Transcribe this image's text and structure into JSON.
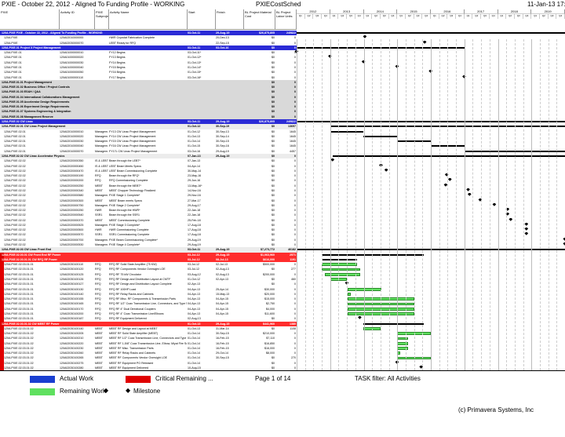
{
  "header": {
    "title": "PXIE - October 22, 2012 - Aligned To Funding Profile - WORKING",
    "layout": "PXIECostSched",
    "date": "11-Jan-13 17:22"
  },
  "columns": {
    "id": "PXIE",
    "activity_id": "Activity ID",
    "subproject": "PXIE Subproject",
    "name": "Activity Name",
    "start": "Start",
    "finish": "Finish",
    "bl_cost": "BL Project Material Cost",
    "bl_labor": "BL Project Labor Units"
  },
  "years": [
    "2012",
    "2013",
    "2014",
    "2015",
    "2016",
    "2017",
    "2018",
    "2019"
  ],
  "quarters": [
    "Q1",
    "Q2",
    "Q3",
    "Q4"
  ],
  "rows": [
    {
      "k": "t",
      "id": "120A.PXIE",
      "name": "PXIE - October 22, 2012 - Aligned To Funding Profile - WORKING",
      "start": "03-Oct-11",
      "finish": "29-Aug-19",
      "cost": "$26,875,805",
      "labor": "249822",
      "bar": [
        0,
        1
      ]
    },
    {
      "k": "d",
      "id": "120A.PXIE",
      "aid": "120A02010000000",
      "name": "HWR Cryostat Fabrication Complete",
      "finish": "20-Dec-13",
      "cost": "$0",
      "labor": "0",
      "ms": 0.2548
    },
    {
      "k": "d",
      "id": "120A.PXIE",
      "aid": "120A02030000070",
      "name": "LEBT Ready for RFQ",
      "finish": "22-Sep-15",
      "cost": "$0",
      "labor": "0",
      "ms": 0.4776
    },
    {
      "k": "h",
      "id": "120A.PXIE.01",
      "name": "Project X Project Management",
      "start": "03-Oct-11",
      "finish": "03-Oct-16",
      "cost": "$0",
      "labor": "0",
      "bar": [
        0,
        0.6246
      ]
    },
    {
      "k": "d",
      "id": "120A.PXIE.01",
      "aid": "120A01000000010",
      "name": "FY12 Begins",
      "start": "03-Oct-11*",
      "cost": "$0",
      "labor": "0",
      "ms": 0.0
    },
    {
      "k": "d",
      "id": "120A.PXIE.01",
      "aid": "120A01000000020",
      "name": "FY13 Begins",
      "start": "01-Oct-12*",
      "cost": "$0",
      "labor": "0",
      "ms": 0.1246
    },
    {
      "k": "d",
      "id": "120A.PXIE.01",
      "aid": "120A01000000030",
      "name": "FY14 Begins",
      "start": "01-Oct-13*",
      "cost": "$0",
      "labor": "0",
      "ms": 0.2496
    },
    {
      "k": "d",
      "id": "120A.PXIE.01",
      "aid": "120A01000000040",
      "name": "FY15 Begins",
      "start": "01-Oct-14*",
      "cost": "$0",
      "labor": "0",
      "ms": 0.3746
    },
    {
      "k": "d",
      "id": "120A.PXIE.01",
      "aid": "120A01000000050",
      "name": "FY16 Begins",
      "start": "01-Oct-15*",
      "cost": "$0",
      "labor": "0",
      "ms": 0.4996
    },
    {
      "k": "d",
      "id": "120A.PXIE.01",
      "aid": "120A01000000110",
      "name": "FY17 Begins",
      "start": "03-Oct-16*",
      "cost": "$0",
      "labor": "0",
      "ms": 0.6246
    },
    {
      "k": "s",
      "id": "120A.PXIE.01.01",
      "name": "Project Management",
      "cost": "$0",
      "labor": "0"
    },
    {
      "k": "s",
      "id": "120A.PXIE.01.02",
      "name": "Business Office / Project Controls",
      "cost": "$0",
      "labor": "0"
    },
    {
      "k": "s",
      "id": "120A.PXIE.01.03",
      "name": "ES&H / Q&A",
      "cost": "$0",
      "labor": "0"
    },
    {
      "k": "s",
      "id": "120A.PXIE.01.04",
      "name": "International Collaborations Management",
      "cost": "$0",
      "labor": "0"
    },
    {
      "k": "s",
      "id": "120A.PXIE.01.05",
      "name": "Accelerator Design Requirements",
      "cost": "$0",
      "labor": "0"
    },
    {
      "k": "s",
      "id": "120A.PXIE.01.06",
      "name": "Experiment Design Requirements",
      "cost": "$0",
      "labor": "0"
    },
    {
      "k": "s",
      "id": "120A.PXIE.01.07",
      "name": "Systems Engineering & Integration",
      "cost": "$0",
      "labor": "0"
    },
    {
      "k": "s",
      "id": "120A.PXIE.01.08",
      "name": "Management Reserve",
      "cost": "$0",
      "labor": "0"
    },
    {
      "k": "h",
      "id": "120A.PXIE.02",
      "name": "CW Linac",
      "start": "03-Oct-11",
      "finish": "29-Aug-19",
      "cost": "$26,875,805",
      "labor": "249822",
      "bar": [
        0,
        1
      ]
    },
    {
      "k": "s2",
      "id": "120A.PXIE.02.01",
      "name": "CW Linac Project Management",
      "start": "01-Oct-12",
      "finish": "30-Sep-19",
      "cost": "$0",
      "labor": "13697",
      "bar": [
        0.1246,
        1
      ]
    },
    {
      "k": "d",
      "id": "120A.PXIE.02.01",
      "aid": "120A02010000010",
      "sub": "Managem...",
      "name": "FY13 CW Linac Project Management",
      "start": "01-Oct-12",
      "finish": "30-Sep-13",
      "cost": "$0",
      "labor": "1645",
      "bar": [
        0.1246,
        0.2496
      ]
    },
    {
      "k": "d",
      "id": "120A.PXIE.02.01",
      "aid": "120A02010000020",
      "sub": "Managem...",
      "name": "FY14 CW Linac Project Management",
      "start": "01-Oct-13",
      "finish": "30-Sep-14",
      "cost": "$0",
      "labor": "1645",
      "bar": [
        0.2496,
        0.3746
      ]
    },
    {
      "k": "d",
      "id": "120A.PXIE.02.01",
      "aid": "120A02010000030",
      "sub": "Managem...",
      "name": "FY15 CW Linac Project Management",
      "start": "01-Oct-14",
      "finish": "30-Sep-15",
      "cost": "$0",
      "labor": "1645",
      "bar": [
        0.3746,
        0.4996
      ]
    },
    {
      "k": "d",
      "id": "120A.PXIE.02.01",
      "aid": "120A02010000040",
      "sub": "Managem...",
      "name": "FY16 CW Linac Project Management",
      "start": "01-Oct-15",
      "finish": "30-Sep-16",
      "cost": "$0",
      "labor": "1645",
      "bar": [
        0.4996,
        0.6246
      ]
    },
    {
      "k": "d",
      "id": "120A.PXIE.02.01",
      "aid": "120A02010000070",
      "sub": "Managem...",
      "name": "FY17L CW Linac Project Management",
      "start": "03-Oct-16",
      "finish": "29-Aug-19",
      "cost": "$0",
      "labor": "4457",
      "bar": [
        0.6246,
        1
      ]
    },
    {
      "k": "s2",
      "id": "120A.PXIE.02.02",
      "name": "CW Linac Accelerator Physics",
      "start": "07-Jan-13",
      "finish": "29-Aug-19",
      "cost": "$0",
      "labor": "0",
      "bar": [
        0.1346,
        1
      ]
    },
    {
      "k": "d",
      "id": "120A.PXIE.02.02",
      "aid": "120A02020000350",
      "sub": "IS & LEBT",
      "name": "Beam through the LEBT*",
      "start": "07-Jan-13",
      "cost": "$0",
      "labor": "0",
      "ms": 0.1346
    },
    {
      "k": "d",
      "id": "120A.PXIE.02.02",
      "aid": "120A02020000450",
      "sub": "IS & LEBT",
      "name": "LEBT Beam Meets Specs",
      "start": "04-Apr-14",
      "cost": "$0",
      "labor": "0",
      "ms": 0.3146
    },
    {
      "k": "d",
      "id": "120A.PXIE.02.02",
      "aid": "120A02020000470",
      "sub": "IS & LEBT",
      "name": "LEBT Beam Commissioning Complete",
      "start": "30-May-14",
      "cost": "$0",
      "labor": "0",
      "ms": 0.3346
    },
    {
      "k": "d",
      "id": "120A.PXIE.02.02",
      "aid": "120A02020000190",
      "sub": "RFQ",
      "name": "Beam through the RFQ*",
      "start": "23-May-16",
      "cost": "$0",
      "labor": "0",
      "ms": 0.5596
    },
    {
      "k": "d",
      "id": "120A.PXIE.02.02",
      "aid": "120A02020000200",
      "sub": "RFQ",
      "name": "RFQ Commissioning Complete",
      "start": "29-Jun-16",
      "cost": "$0",
      "labor": "0",
      "ms": 0.5716
    },
    {
      "k": "d",
      "id": "120A.PXIE.02.02",
      "aid": "120A02020000250",
      "sub": "MEBT",
      "name": "Beam through the MEBT*",
      "start": "13-May-16*",
      "cost": "$0",
      "labor": "0",
      "ms": 0.5561
    },
    {
      "k": "d",
      "id": "120A.PXIE.02.02",
      "aid": "120A02020000340",
      "sub": "MEBT",
      "name": "MEBT Chopper Technology Finalized",
      "start": "14-Nov-16",
      "cost": "$0",
      "labor": "0",
      "ms": 0.6396
    },
    {
      "k": "d",
      "id": "120A.PXIE.02.02",
      "aid": "120A02020000580",
      "sub": "Managem...",
      "name": "PXIE Stage 1 Complete*",
      "start": "29-Nov-16",
      "cost": "$0",
      "labor": "0",
      "ms": 0.6446
    },
    {
      "k": "d",
      "id": "120A.PXIE.02.02",
      "aid": "120A02020000300",
      "sub": "MEBT",
      "name": "MEBT Beam meets Specs",
      "start": "27-Mar-17",
      "cost": "$0",
      "labor": "0",
      "ms": 0.6846
    },
    {
      "k": "d",
      "id": "120A.PXIE.02.02",
      "aid": "120A02020000750",
      "sub": "Managem...",
      "name": "PXIE Stage 2 Complete*",
      "start": "29-Aug-17",
      "cost": "$0",
      "labor": "0",
      "ms": 0.7371
    },
    {
      "k": "d",
      "id": "120A.PXIE.02.02",
      "aid": "120A02020000250",
      "sub": "HWR",
      "name": "Beam through the HWR*",
      "start": "22-Jan-18",
      "cost": "$0",
      "labor": "0",
      "ms": 0.7866
    },
    {
      "k": "d",
      "id": "120A.PXIE.02.02",
      "aid": "120A02020000540",
      "sub": "SSR1",
      "name": "Beam through the SSR1",
      "start": "22-Jan-18",
      "cost": "$0",
      "labor": "0",
      "ms": 0.7866
    },
    {
      "k": "d",
      "id": "120A.PXIE.02.02",
      "aid": "120A02020000370",
      "sub": "MEBT",
      "name": "MEBT Commissioning Complete",
      "start": "25-Feb-18",
      "cost": "$0",
      "labor": "0",
      "ms": 0.7981
    },
    {
      "k": "d",
      "id": "120A.PXIE.02.02",
      "aid": "120A02020000525",
      "sub": "Managem...",
      "name": "PXIE Stage 3 Complete*",
      "start": "17-Aug-18",
      "cost": "$0",
      "labor": "0",
      "ms": 0.8566
    },
    {
      "k": "d",
      "id": "120A.PXIE.02.02",
      "aid": "120A02020000500",
      "sub": "HWR",
      "name": "HWR Commissioning Complete",
      "start": "17-Aug-18",
      "cost": "$0",
      "labor": "0",
      "ms": 0.8566
    },
    {
      "k": "d",
      "id": "120A.PXIE.02.02",
      "aid": "120A02020000570",
      "sub": "SSR1",
      "name": "SSR1 Commissioning Complete",
      "start": "17-Aug-18",
      "cost": "$0",
      "labor": "0",
      "ms": 0.8566
    },
    {
      "k": "d",
      "id": "120A.PXIE.02.02",
      "aid": "120A02020000700",
      "sub": "Managem...",
      "name": "PXIE Beam Commissioning Complete*",
      "start": "29-Aug-19",
      "cost": "$0",
      "labor": "0",
      "ms": 1.0
    },
    {
      "k": "d",
      "id": "120A.PXIE.02.02",
      "aid": "120A02020000530",
      "sub": "Managem...",
      "name": "PXIE Stage 4 Complete*",
      "start": "29-Aug-19",
      "cost": "$0",
      "labor": "0",
      "ms": 1.0
    },
    {
      "k": "s2",
      "id": "120A.PXIE.02.03",
      "name": "CW Linac Front End",
      "start": "03-Oct-11",
      "finish": "29-Aug-19",
      "cost": "$7,273,772",
      "labor": "46182",
      "bar": [
        0,
        1
      ]
    },
    {
      "k": "r",
      "id": "120A.PXIE.02.03.01",
      "name": "CW Front End RF Power",
      "start": "03-Jul-12",
      "finish": "29-Aug-15",
      "cost": "$1,063,960",
      "labor": "2571",
      "bar": [
        0.0946,
        0.4736
      ]
    },
    {
      "k": "r",
      "id": "120A.PXIE.02.03.01.01",
      "name": "CW RFQ RF Power",
      "start": "03-Jul-12",
      "finish": "08-Jul-13",
      "cost": "$616,000",
      "labor": "1191",
      "bar": [
        0.0946,
        0.2266
      ]
    },
    {
      "k": "d",
      "id": "120A.PXIE.02.03.01.01",
      "aid": "120A02030100110",
      "sub": "RFQ",
      "name": "RFQ RF Solid State Amplifier (75 KW)",
      "start": "03-Jul-12",
      "finish": "02-Jul-13",
      "cost": "$500,000",
      "labor": "0",
      "gbar": [
        0.0946,
        0.2246
      ]
    },
    {
      "k": "d",
      "id": "120A.PXIE.02.03.01.01",
      "aid": "120A02030100120",
      "sub": "RFQ",
      "name": "RFQ RF Components Vendor Oversight LOE",
      "start": "03-Jul-12",
      "finish": "02-Aug-13",
      "cost": "$0",
      "labor": "277",
      "gbar": [
        0.0946,
        0.2356
      ]
    },
    {
      "k": "d",
      "id": "120A.PXIE.02.03.01.01",
      "aid": "120A02030100125",
      "sub": "RFQ",
      "name": "RFQ RF 75 kW Circulator",
      "start": "03-Aug-12",
      "finish": "02-Aug-13",
      "cost": "$200,000",
      "labor": "0",
      "gbar": [
        0.1056,
        0.2356
      ]
    },
    {
      "k": "d",
      "id": "120A.PXIE.02.03.01.01",
      "aid": "120A02030100126",
      "sub": "RFQ",
      "name": "RFQ RF Design and Distribution Layout at CMTF",
      "start": "01-Oct-12",
      "finish": "02-Apr-13",
      "cost": "$0",
      "labor": "460",
      "gbar": [
        0.1246,
        0.1876
      ]
    },
    {
      "k": "d",
      "id": "120A.PXIE.02.03.01.01",
      "aid": "120A02030100127",
      "sub": "RFQ",
      "name": "RFQ RF Design and Distribution Layout Complete",
      "start": "02-Apr-13",
      "cost": "$0",
      "labor": "0",
      "ms": 0.1876
    },
    {
      "k": "d",
      "id": "120A.PXIE.02.03.01.01",
      "aid": "120A02030100130",
      "sub": "RFQ",
      "name": "RFQ RF 100HP Load",
      "start": "04-Apr-13",
      "finish": "25-Apr-14",
      "cost": "$30,000",
      "labor": "0",
      "gbar": [
        0.1886,
        0.3146
      ]
    },
    {
      "k": "d",
      "id": "120A.PXIE.02.03.01.01",
      "aid": "120A02030100140",
      "sub": "RFQ",
      "name": "RFQ RF Relay Racks and Cabinets",
      "start": "04-Apr-13",
      "finish": "15-May-13",
      "cost": "$20,000",
      "labor": "0",
      "gbar": [
        0.1886,
        0.2026
      ]
    },
    {
      "k": "d",
      "id": "120A.PXIE.02.03.01.01",
      "aid": "120A02030100155",
      "sub": "RFQ",
      "name": "RFQ RF Misc. RF Components & Transmission Parts",
      "start": "04-Apr-13",
      "finish": "04-Apr-15",
      "cost": "$15,000",
      "labor": "0",
      "gbar": [
        0.1886,
        0.4376
      ]
    },
    {
      "k": "d",
      "id": "120A.PXIE.02.03.01.01",
      "aid": "120A02030100165",
      "sub": "RFQ",
      "name": "RFQ RF 1/2\" Coax Transmission Line, Connectors, and Type N Dual Directional ...",
      "start": "04-Apr-13",
      "finish": "04-Apr-15",
      "cost": "$2,750",
      "labor": "0",
      "gbar": [
        0.1886,
        0.4376
      ]
    },
    {
      "k": "d",
      "id": "120A.PXIE.02.03.01.01",
      "aid": "120A02030100170",
      "sub": "RFQ",
      "name": "RFQ RF 4\" Dual Directional Couplers",
      "start": "04-Apr-13",
      "finish": "04-Apr-15",
      "cost": "$4,000",
      "labor": "0",
      "gbar": [
        0.1886,
        0.4376
      ]
    },
    {
      "k": "d",
      "id": "120A.PXIE.02.03.01.01",
      "aid": "120A02030100200",
      "sub": "RFQ",
      "name": "RFQ RF 4\" Coax Transmission Line/Elbows",
      "start": "04-Apr-13",
      "finish": "04-Apr-15",
      "cost": "$11,600",
      "labor": "0",
      "gbar": [
        0.1886,
        0.4376
      ]
    },
    {
      "k": "d",
      "id": "120A.PXIE.02.03.01.01",
      "aid": "120A02030100187",
      "sub": "RFQ",
      "name": "RFQ RF Equipment Delivered",
      "start": "02-Aug-13",
      "cost": "$0",
      "labor": "0",
      "ms": 0.2356
    },
    {
      "k": "r",
      "id": "120A.PXIE.02.03.01.02",
      "name": "CW MEBT RF Power",
      "start": "01-Oct-13",
      "finish": "29-Aug-15",
      "cost": "$441,960",
      "labor": "1380",
      "bar": [
        0.2496,
        0.4736
      ]
    },
    {
      "k": "d",
      "id": "120A.PXIE.02.03.01.02",
      "aid": "120A02030100140",
      "sub": "MEBT",
      "name": "MEBT RF Design and Layout at MEBT",
      "start": "01-Oct-13",
      "finish": "31-Mar-14",
      "cost": "$0",
      "labor": "1108",
      "gbar": [
        0.2496,
        0.3116
      ]
    },
    {
      "k": "d",
      "id": "120A.PXIE.02.03.01.02",
      "aid": "120A02030100205",
      "sub": "MEBT",
      "name": "MEBT RF Solid State Amplifier (MEBT)",
      "start": "01-Oct-14",
      "finish": "30-Sep-15",
      "cost": "$210,000",
      "labor": "0",
      "gbar": [
        0.3746,
        0.4996
      ]
    },
    {
      "k": "d",
      "id": "120A.PXIE.02.03.01.02",
      "aid": "120A02030100210",
      "sub": "MEBT",
      "name": "MEBT RF 1/2\" Coax Transmission Line, Connectors and Type N Dual Directional ...",
      "start": "01-Oct-14",
      "finish": "16-Feb-15",
      "cost": "$7,110",
      "labor": "0",
      "gbar": [
        0.3746,
        0.4166
      ]
    },
    {
      "k": "d",
      "id": "120A.PXIE.02.03.01.02",
      "aid": "120A02030100220",
      "sub": "MEBT",
      "name": "MEBT RF 1-5/8\" Coax Transmission Line, Elbow, Miyat Fire Section and Dual Dire...",
      "start": "01-Oct-14",
      "finish": "16-Feb-15",
      "cost": "$16,850",
      "labor": "0",
      "gbar": [
        0.3746,
        0.4166
      ]
    },
    {
      "k": "d",
      "id": "120A.PXIE.02.03.01.02",
      "aid": "120A02030100230",
      "sub": "MEBT",
      "name": "MEBT RF Misc. Transmission Parts",
      "start": "01-Oct-14",
      "finish": "16-Feb-15",
      "cost": "$16,000",
      "labor": "0",
      "gbar": [
        0.3746,
        0.4166
      ]
    },
    {
      "k": "d",
      "id": "120A.PXIE.02.03.01.02",
      "aid": "120A02030100260",
      "sub": "MEBT",
      "name": "MEBT RF Relay Racks and Cabinets",
      "start": "01-Oct-14",
      "finish": "29-Oct-14",
      "cost": "$8,000",
      "labor": "0",
      "gbar": [
        0.3746,
        0.3846
      ]
    },
    {
      "k": "d",
      "id": "120A.PXIE.02.03.01.02",
      "aid": "120A02030100265",
      "sub": "MEBT",
      "name": "MEBT RF Components Vendor Oversight LOE",
      "start": "01-Oct-14",
      "finish": "30-Sep-15",
      "cost": "$0",
      "labor": "270",
      "gbar": [
        0.3746,
        0.4996
      ]
    },
    {
      "k": "d",
      "id": "120A.PXIE.02.03.01.02",
      "aid": "120A02030100275",
      "sub": "MEBT",
      "name": "MEBT RF Equipment PO Released",
      "start": "01-Oct-14",
      "cost": "$0",
      "labor": "0",
      "ms": 0.3746
    },
    {
      "k": "d",
      "id": "120A.PXIE.02.03.01.02",
      "aid": "120A02030100280",
      "sub": "MEBT",
      "name": "MEBT RF Equipment Delivered",
      "start": "10-Aug-15",
      "cost": "$0",
      "labor": "0",
      "ms": 0.4646
    }
  ],
  "footer": {
    "page": "Page 1 of 14",
    "filter": "TASK filter: All Activities",
    "actual": "Actual Work",
    "remaining": "Remaining Work",
    "critical": "Critical Remaining ...",
    "milestone": "Milestone",
    "copyright": "(c) Primavera Systems, Inc"
  },
  "colors": {
    "title_band": "#2b2bd6",
    "wbs2": "#d9d9d9",
    "wbs3": "#ececec",
    "red_band": "#e00000",
    "red_row": "#ff2d2d",
    "actual": "#1a3fd1",
    "critical": "#e00000",
    "remaining": "#5fe05f"
  }
}
